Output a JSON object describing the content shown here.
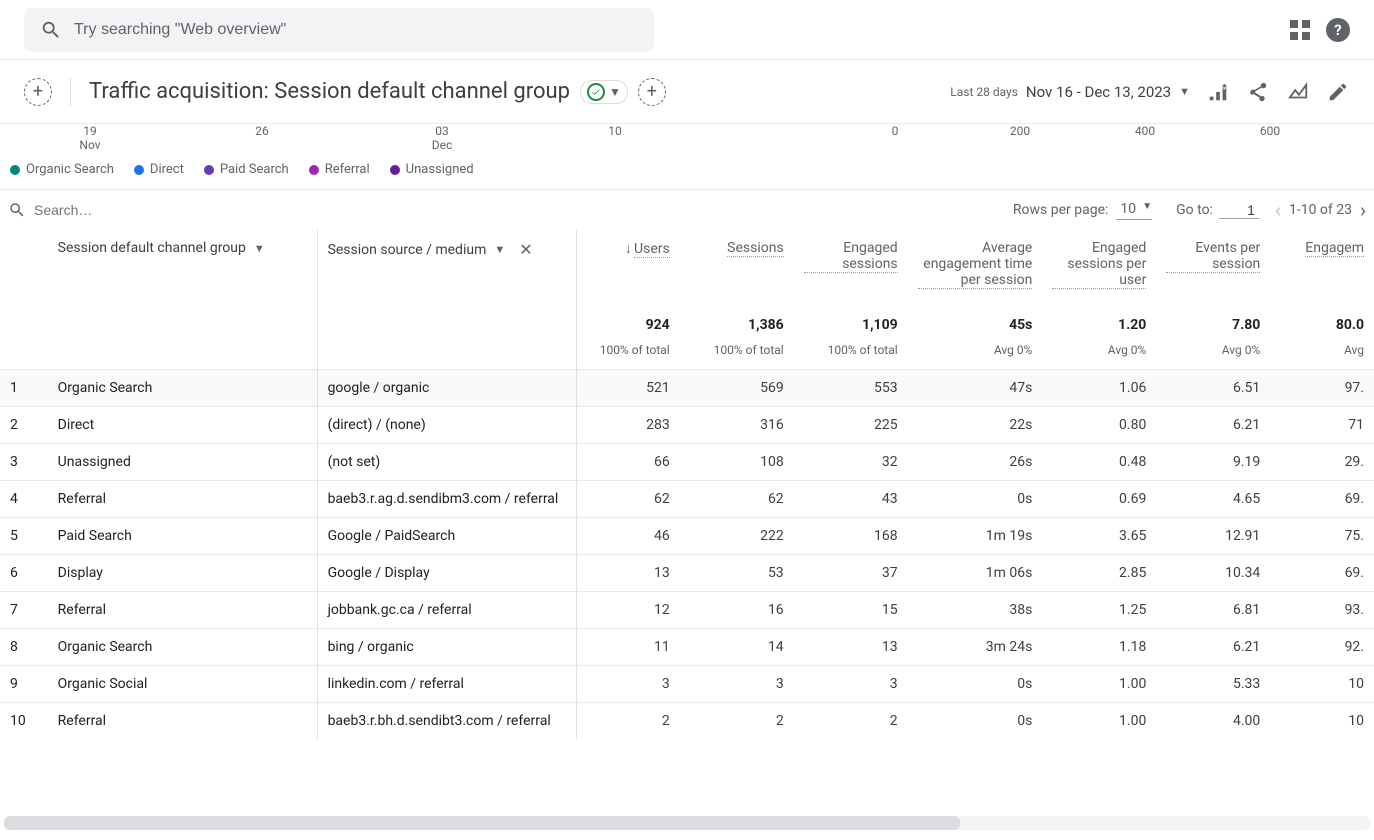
{
  "topbar": {
    "search_placeholder": "Try searching \"Web overview\""
  },
  "title": "Traffic acquisition: Session default channel group",
  "date": {
    "label": "Last 28 days",
    "value": "Nov 16 - Dec 13, 2023"
  },
  "chart": {
    "x_left": [
      "19",
      "Nov",
      "26",
      "03",
      "Dec",
      "10"
    ],
    "x_right": [
      "0",
      "200",
      "400",
      "600"
    ],
    "legend": [
      {
        "label": "Organic Search",
        "color": "#00897b"
      },
      {
        "label": "Direct",
        "color": "#1a73e8"
      },
      {
        "label": "Paid Search",
        "color": "#673ab7"
      },
      {
        "label": "Referral",
        "color": "#9c27b0"
      },
      {
        "label": "Unassigned",
        "color": "#6a1b9a"
      }
    ]
  },
  "toolbar": {
    "search_placeholder": "Search…",
    "rows_label": "Rows per page:",
    "rows_value": "10",
    "goto_label": "Go to:",
    "goto_value": "1",
    "range": "1-10 of 23"
  },
  "dims": {
    "primary": "Session default channel group",
    "secondary": "Session source / medium"
  },
  "columns": [
    "Users",
    "Sessions",
    "Engaged sessions",
    "Average engagement time per session",
    "Engaged sessions per user",
    "Events per session",
    "Engagem"
  ],
  "totals": {
    "values": [
      "924",
      "1,386",
      "1,109",
      "45s",
      "1.20",
      "7.80",
      "80.0"
    ],
    "sub": [
      "100% of total",
      "100% of total",
      "100% of total",
      "Avg 0%",
      "Avg 0%",
      "Avg 0%",
      "Avg"
    ]
  },
  "rows": [
    {
      "i": "1",
      "ch": "Organic Search",
      "src": "google / organic",
      "v": [
        "521",
        "569",
        "553",
        "47s",
        "1.06",
        "6.51",
        "97."
      ]
    },
    {
      "i": "2",
      "ch": "Direct",
      "src": "(direct) / (none)",
      "v": [
        "283",
        "316",
        "225",
        "22s",
        "0.80",
        "6.21",
        "71"
      ]
    },
    {
      "i": "3",
      "ch": "Unassigned",
      "src": "(not set)",
      "v": [
        "66",
        "108",
        "32",
        "26s",
        "0.48",
        "9.19",
        "29."
      ]
    },
    {
      "i": "4",
      "ch": "Referral",
      "src": "baeb3.r.ag.d.sendibm3.com / referral",
      "v": [
        "62",
        "62",
        "43",
        "0s",
        "0.69",
        "4.65",
        "69."
      ]
    },
    {
      "i": "5",
      "ch": "Paid Search",
      "src": "Google / PaidSearch",
      "v": [
        "46",
        "222",
        "168",
        "1m 19s",
        "3.65",
        "12.91",
        "75."
      ]
    },
    {
      "i": "6",
      "ch": "Display",
      "src": "Google / Display",
      "v": [
        "13",
        "53",
        "37",
        "1m 06s",
        "2.85",
        "10.34",
        "69."
      ]
    },
    {
      "i": "7",
      "ch": "Referral",
      "src": "jobbank.gc.ca / referral",
      "v": [
        "12",
        "16",
        "15",
        "38s",
        "1.25",
        "6.81",
        "93."
      ]
    },
    {
      "i": "8",
      "ch": "Organic Search",
      "src": "bing / organic",
      "v": [
        "11",
        "14",
        "13",
        "3m 24s",
        "1.18",
        "6.21",
        "92."
      ]
    },
    {
      "i": "9",
      "ch": "Organic Social",
      "src": "linkedin.com / referral",
      "v": [
        "3",
        "3",
        "3",
        "0s",
        "1.00",
        "5.33",
        "10"
      ]
    },
    {
      "i": "10",
      "ch": "Referral",
      "src": "baeb3.r.bh.d.sendibt3.com / referral",
      "v": [
        "2",
        "2",
        "2",
        "0s",
        "1.00",
        "4.00",
        "10"
      ]
    }
  ]
}
